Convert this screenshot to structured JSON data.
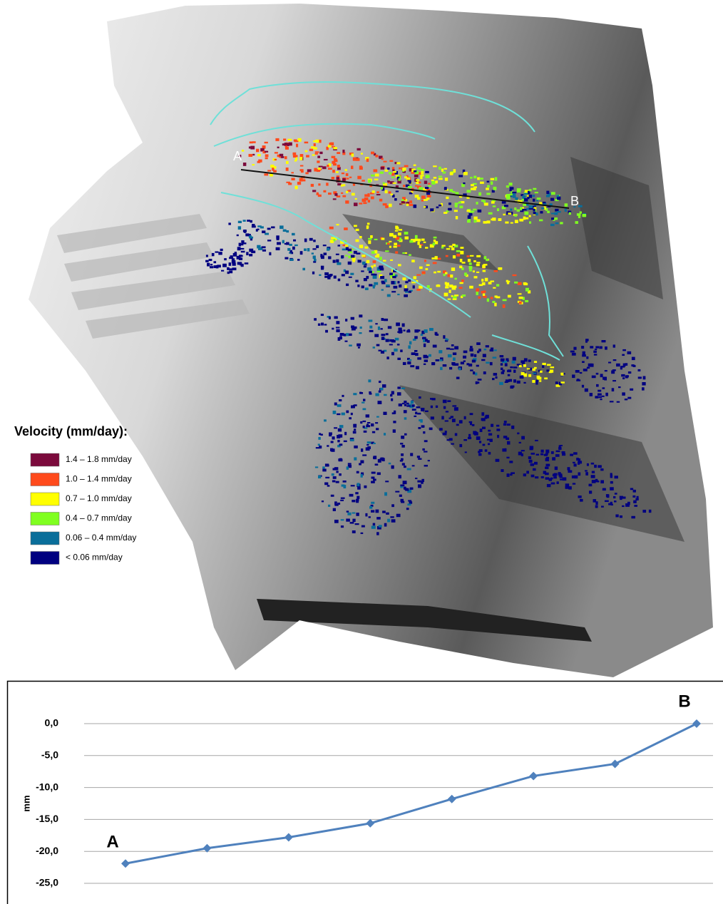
{
  "map": {
    "point_a": "A",
    "point_b": "B",
    "legend_title": "Velocity (mm/day):",
    "legend": [
      {
        "label": "1.4 – 1.8 mm/day",
        "color": "#7b0a3c"
      },
      {
        "label": "1.0 – 1.4 mm/day",
        "color": "#ff4a1c"
      },
      {
        "label": "0.7 – 1.0 mm/day",
        "color": "#ffff00"
      },
      {
        "label": "0.4 – 0.7 mm/day",
        "color": "#80ff20"
      },
      {
        "label": "0.06 – 0.4 mm/day",
        "color": "#0a6e9a"
      },
      {
        "label": "< 0.06 mm/day",
        "color": "#000080"
      }
    ]
  },
  "chart_data": {
    "type": "line",
    "y_label": "mm",
    "annotations": [
      "A",
      "B"
    ],
    "categories": [
      null,
      null,
      null,
      null,
      null,
      null,
      null,
      null
    ],
    "series": [
      {
        "color": "#4f81bd",
        "values": [
          -21.9,
          -19.5,
          -17.8,
          -15.6,
          -11.8,
          -8.2,
          -6.3,
          0.0
        ]
      }
    ],
    "ylim": [
      -25,
      0
    ],
    "yticks": [
      {
        "value": 0,
        "label": "0,0"
      },
      {
        "value": -5,
        "label": "-5,0"
      },
      {
        "value": -10,
        "label": "-10,0"
      },
      {
        "value": -15,
        "label": "-15,0"
      },
      {
        "value": -20,
        "label": "-20,0"
      },
      {
        "value": -25,
        "label": "-25,0"
      }
    ],
    "grid": true
  }
}
